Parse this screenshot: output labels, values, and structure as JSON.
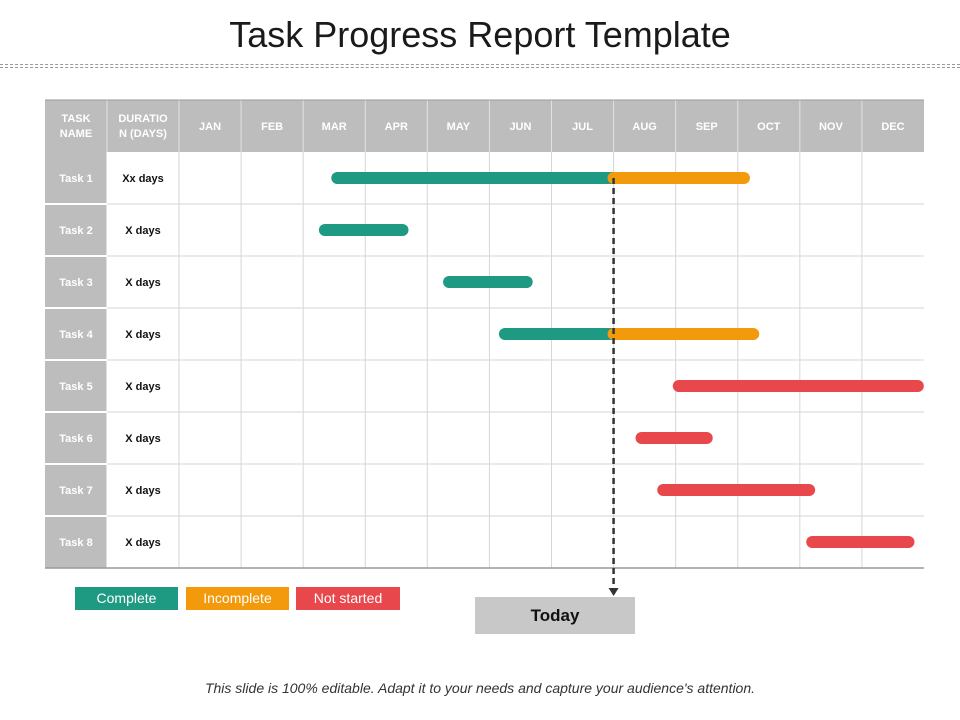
{
  "title": "Task Progress Report Template",
  "footer": "This slide is 100% editable. Adapt it to your needs and capture your audience's attention.",
  "table": {
    "task_header": [
      "TASK",
      "NAME"
    ],
    "duration_header": [
      "DURATIO",
      "N (DAYS)"
    ]
  },
  "colors": {
    "complete": "#1e9a82",
    "incomplete": "#f29a0c",
    "not_started": "#e8484c",
    "header_bg": "#bdbdbd",
    "task_col_bg": "#bdbdbd",
    "grid": "#d6d6d6",
    "today_box": "#c8c8c8"
  },
  "legend": {
    "complete": "Complete",
    "incomplete": "Incomplete",
    "not_started": "Not started"
  },
  "today_label": "Today",
  "chart_data": {
    "type": "gantt",
    "months": [
      "JAN",
      "FEB",
      "MAR",
      "APR",
      "MAY",
      "JUN",
      "JUL",
      "AUG",
      "SEP",
      "OCT",
      "NOV",
      "DEC"
    ],
    "today": 7.0,
    "tasks": [
      {
        "name": "Task 1",
        "duration": "Xx days",
        "segments": [
          {
            "status": "complete",
            "start": 2.55,
            "end": 7.0
          },
          {
            "status": "incomplete",
            "start": 7.0,
            "end": 9.1
          }
        ]
      },
      {
        "name": "Task 2",
        "duration": "X days",
        "segments": [
          {
            "status": "complete",
            "start": 2.35,
            "end": 3.6
          }
        ]
      },
      {
        "name": "Task 3",
        "duration": "X days",
        "segments": [
          {
            "status": "complete",
            "start": 4.35,
            "end": 5.6
          }
        ]
      },
      {
        "name": "Task 4",
        "duration": "X days",
        "segments": [
          {
            "status": "complete",
            "start": 5.25,
            "end": 7.0
          },
          {
            "status": "incomplete",
            "start": 7.0,
            "end": 9.25
          }
        ]
      },
      {
        "name": "Task 5",
        "duration": "X days",
        "segments": [
          {
            "status": "not_started",
            "start": 8.05,
            "end": 11.9
          }
        ]
      },
      {
        "name": "Task 6",
        "duration": "X days",
        "segments": [
          {
            "status": "not_started",
            "start": 7.45,
            "end": 8.5
          }
        ]
      },
      {
        "name": "Task 7",
        "duration": "X days",
        "segments": [
          {
            "status": "not_started",
            "start": 7.8,
            "end": 10.15
          }
        ]
      },
      {
        "name": "Task 8",
        "duration": "X days",
        "segments": [
          {
            "status": "not_started",
            "start": 10.2,
            "end": 11.75
          }
        ]
      }
    ]
  }
}
